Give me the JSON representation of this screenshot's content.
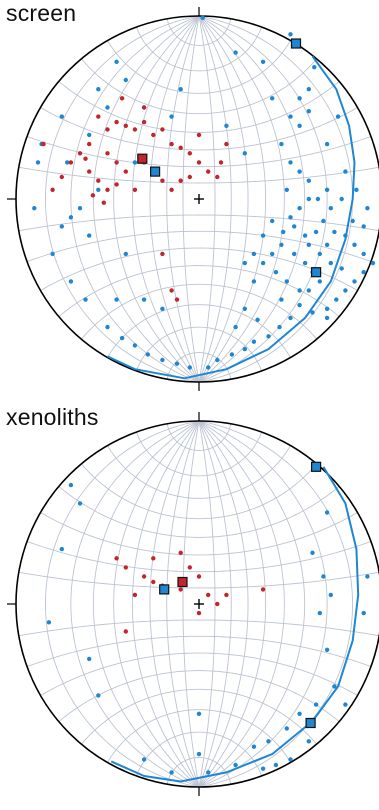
{
  "panels": [
    {
      "id": "screen",
      "title": "screen",
      "colors": {
        "red": "#c0262b",
        "blue": "#1f86d3",
        "grid": "#bcc4d2",
        "great_circle": "#1f86d3"
      },
      "poles_blue": [
        [
          0.02,
          0.99
        ],
        [
          -0.55,
          0.6
        ],
        [
          -0.5,
          0.5
        ],
        [
          -0.6,
          0.35
        ],
        [
          -0.75,
          0.45
        ],
        [
          -0.86,
          0.3
        ],
        [
          -0.88,
          0.2
        ],
        [
          -0.72,
          0.2
        ],
        [
          -0.45,
          0.75
        ],
        [
          -0.4,
          0.65
        ],
        [
          -0.3,
          0.5
        ],
        [
          -0.1,
          0.6
        ],
        [
          0.2,
          0.8
        ],
        [
          0.35,
          0.75
        ],
        [
          0.55,
          0.55
        ],
        [
          0.6,
          0.6
        ],
        [
          0.4,
          0.55
        ],
        [
          0.5,
          0.45
        ],
        [
          0.45,
          0.3
        ],
        [
          0.55,
          0.15
        ],
        [
          0.7,
          0.3
        ],
        [
          0.8,
          0.15
        ],
        [
          0.76,
          0.45
        ],
        [
          0.63,
          0.72
        ],
        [
          0.5,
          0.2
        ],
        [
          0.48,
          0.05
        ],
        [
          0.6,
          0.1
        ],
        [
          0.65,
          0.0
        ],
        [
          0.7,
          0.05
        ],
        [
          0.72,
          -0.05
        ],
        [
          0.68,
          -0.12
        ],
        [
          0.74,
          -0.18
        ],
        [
          0.8,
          -0.2
        ],
        [
          0.85,
          -0.25
        ],
        [
          0.9,
          -0.3
        ],
        [
          0.95,
          -0.35
        ],
        [
          0.9,
          -0.4
        ],
        [
          0.85,
          -0.45
        ],
        [
          0.8,
          -0.5
        ],
        [
          0.75,
          -0.55
        ],
        [
          0.7,
          -0.6
        ],
        [
          0.62,
          -0.62
        ],
        [
          0.55,
          -0.5
        ],
        [
          0.48,
          -0.45
        ],
        [
          0.42,
          -0.4
        ],
        [
          0.4,
          -0.3
        ],
        [
          0.45,
          -0.25
        ],
        [
          0.52,
          -0.3
        ],
        [
          0.58,
          -0.35
        ],
        [
          0.62,
          -0.4
        ],
        [
          0.66,
          -0.45
        ],
        [
          0.6,
          -0.5
        ],
        [
          0.55,
          -0.58
        ],
        [
          0.5,
          -0.65
        ],
        [
          0.44,
          -0.7
        ],
        [
          0.38,
          -0.75
        ],
        [
          0.3,
          -0.78
        ],
        [
          0.25,
          -0.82
        ],
        [
          0.18,
          -0.85
        ],
        [
          0.1,
          -0.88
        ],
        [
          0.05,
          -0.92
        ],
        [
          -0.05,
          -0.92
        ],
        [
          -0.12,
          -0.9
        ],
        [
          -0.2,
          -0.88
        ],
        [
          -0.28,
          -0.85
        ],
        [
          -0.35,
          -0.8
        ],
        [
          -0.42,
          -0.76
        ],
        [
          -0.5,
          -0.7
        ],
        [
          -0.62,
          -0.55
        ],
        [
          -0.7,
          -0.45
        ],
        [
          -0.8,
          -0.3
        ],
        [
          -0.6,
          -0.2
        ],
        [
          -0.4,
          -0.3
        ],
        [
          -0.3,
          -0.55
        ],
        [
          -0.2,
          -0.6
        ],
        [
          -0.45,
          -0.55
        ],
        [
          -0.9,
          -0.05
        ],
        [
          0.35,
          -0.2
        ],
        [
          0.3,
          -0.45
        ],
        [
          0.25,
          -0.6
        ],
        [
          0.2,
          -0.7
        ],
        [
          0.32,
          -0.66
        ],
        [
          0.45,
          -0.55
        ],
        [
          0.6,
          -0.25
        ],
        [
          0.66,
          -0.3
        ],
        [
          0.72,
          -0.35
        ],
        [
          0.78,
          -0.38
        ],
        [
          0.84,
          -0.12
        ],
        [
          0.9,
          -0.15
        ],
        [
          0.92,
          -0.05
        ],
        [
          0.86,
          0.05
        ],
        [
          0.78,
          0.0
        ],
        [
          0.7,
          -0.25
        ],
        [
          0.64,
          -0.18
        ],
        [
          0.58,
          -0.2
        ],
        [
          0.52,
          -0.15
        ],
        [
          0.46,
          -0.18
        ],
        [
          0.4,
          -0.12
        ],
        [
          0.35,
          -0.35
        ],
        [
          0.3,
          -0.3
        ],
        [
          0.25,
          -0.35
        ],
        [
          0.6,
          0.0
        ],
        [
          0.55,
          -0.05
        ],
        [
          0.5,
          -0.1
        ],
        [
          -0.15,
          0.45
        ],
        [
          -0.35,
          0.2
        ],
        [
          -0.55,
          0.05
        ],
        [
          -0.65,
          -0.05
        ],
        [
          -0.7,
          -0.1
        ],
        [
          -0.75,
          -0.15
        ],
        [
          0.15,
          0.4
        ],
        [
          0.25,
          0.25
        ],
        [
          0.55,
          0.4
        ],
        [
          0.6,
          0.48
        ],
        [
          0.7,
          -0.65
        ],
        [
          0.5,
          0.9
        ]
      ],
      "poles_red": [
        [
          -0.55,
          0.45
        ],
        [
          -0.5,
          0.38
        ],
        [
          -0.45,
          0.42
        ],
        [
          -0.4,
          0.4
        ],
        [
          -0.35,
          0.38
        ],
        [
          -0.3,
          0.42
        ],
        [
          -0.25,
          0.35
        ],
        [
          -0.2,
          0.38
        ],
        [
          -0.15,
          0.3
        ],
        [
          -0.1,
          0.28
        ],
        [
          -0.05,
          0.25
        ],
        [
          0.0,
          0.2
        ],
        [
          -0.6,
          0.3
        ],
        [
          -0.65,
          0.25
        ],
        [
          -0.7,
          0.2
        ],
        [
          -0.75,
          0.12
        ],
        [
          -0.5,
          0.25
        ],
        [
          -0.45,
          0.2
        ],
        [
          -0.4,
          0.15
        ],
        [
          -0.3,
          0.2
        ],
        [
          -0.25,
          0.15
        ],
        [
          -0.2,
          0.1
        ],
        [
          -0.15,
          0.05
        ],
        [
          -0.1,
          0.1
        ],
        [
          -0.05,
          0.12
        ],
        [
          0.05,
          0.15
        ],
        [
          0.1,
          0.12
        ],
        [
          0.12,
          0.2
        ],
        [
          -0.55,
          0.1
        ],
        [
          -0.5,
          0.05
        ],
        [
          -0.45,
          0.08
        ],
        [
          -0.35,
          0.05
        ],
        [
          -0.6,
          0.15
        ],
        [
          -0.8,
          0.05
        ],
        [
          -0.85,
          0.3
        ],
        [
          -0.15,
          -0.5
        ],
        [
          -0.12,
          -0.55
        ],
        [
          -0.2,
          -0.3
        ],
        [
          -0.3,
          0.5
        ],
        [
          -0.42,
          0.55
        ],
        [
          0.0,
          0.35
        ],
        [
          0.15,
          0.3
        ],
        [
          -0.58,
          0.02
        ],
        [
          -0.52,
          -0.02
        ],
        [
          -0.62,
          0.22
        ]
      ],
      "great_circle": [
        [
          0.62,
          0.78
        ],
        [
          0.75,
          0.6
        ],
        [
          0.82,
          0.4
        ],
        [
          0.85,
          0.2
        ],
        [
          0.84,
          0.0
        ],
        [
          0.8,
          -0.22
        ],
        [
          0.72,
          -0.45
        ],
        [
          0.58,
          -0.65
        ],
        [
          0.38,
          -0.82
        ],
        [
          0.15,
          -0.93
        ],
        [
          -0.08,
          -0.98
        ],
        [
          -0.35,
          -0.93
        ],
        [
          -0.5,
          -0.86
        ]
      ],
      "squares_blue": [
        [
          0.53,
          0.85
        ],
        [
          -0.24,
          0.15
        ],
        [
          0.64,
          -0.4
        ]
      ],
      "squares_red": [
        [
          -0.31,
          0.22
        ]
      ]
    },
    {
      "id": "xenoliths",
      "title": "xenoliths",
      "colors": {
        "red": "#c0262b",
        "blue": "#1f86d3",
        "grid": "#bcc4d2",
        "great_circle": "#1f86d3"
      },
      "poles_blue": [
        [
          -0.7,
          0.65
        ],
        [
          -0.65,
          0.55
        ],
        [
          -0.75,
          0.3
        ],
        [
          -0.82,
          -0.1
        ],
        [
          -0.6,
          -0.3
        ],
        [
          -0.55,
          -0.5
        ],
        [
          0.7,
          0.5
        ],
        [
          0.62,
          0.28
        ],
        [
          0.68,
          0.15
        ],
        [
          0.72,
          0.05
        ],
        [
          0.66,
          -0.05
        ],
        [
          0.7,
          -0.25
        ],
        [
          0.74,
          -0.45
        ],
        [
          0.64,
          -0.55
        ],
        [
          0.55,
          -0.6
        ],
        [
          0.48,
          -0.68
        ],
        [
          0.38,
          -0.75
        ],
        [
          0.3,
          -0.78
        ],
        [
          0.5,
          -0.85
        ],
        [
          0.42,
          -0.88
        ],
        [
          0.35,
          -0.9
        ],
        [
          0.0,
          -0.6
        ],
        [
          0.0,
          -0.82
        ],
        [
          -0.3,
          -0.85
        ],
        [
          -0.15,
          -0.92
        ],
        [
          0.05,
          -0.92
        ],
        [
          0.2,
          -0.88
        ],
        [
          0.6,
          -0.75
        ],
        [
          0.8,
          -0.55
        ],
        [
          0.9,
          -0.05
        ],
        [
          0.92,
          0.15
        ]
      ],
      "poles_red": [
        [
          -0.3,
          0.15
        ],
        [
          -0.25,
          0.12
        ],
        [
          -0.2,
          0.1
        ],
        [
          -0.1,
          0.08
        ],
        [
          0.0,
          0.15
        ],
        [
          0.05,
          0.05
        ],
        [
          0.1,
          0.0
        ],
        [
          -0.05,
          0.2
        ],
        [
          -0.35,
          0.05
        ],
        [
          -0.45,
          0.25
        ],
        [
          -0.4,
          0.2
        ],
        [
          -0.25,
          0.25
        ],
        [
          0.15,
          0.05
        ],
        [
          0.35,
          0.08
        ],
        [
          -0.4,
          -0.15
        ],
        [
          0.0,
          -0.05
        ],
        [
          -0.1,
          0.28
        ]
      ],
      "great_circle": [
        [
          0.68,
          0.75
        ],
        [
          0.8,
          0.55
        ],
        [
          0.86,
          0.3
        ],
        [
          0.87,
          0.05
        ],
        [
          0.84,
          -0.2
        ],
        [
          0.76,
          -0.45
        ],
        [
          0.62,
          -0.64
        ],
        [
          0.4,
          -0.82
        ],
        [
          0.15,
          -0.92
        ],
        [
          -0.1,
          -0.97
        ],
        [
          -0.3,
          -0.94
        ],
        [
          -0.48,
          -0.86
        ]
      ],
      "squares_blue": [
        [
          0.64,
          0.75
        ],
        [
          -0.19,
          0.08
        ],
        [
          0.61,
          -0.65
        ]
      ],
      "squares_red": [
        [
          -0.09,
          0.12
        ]
      ]
    }
  ]
}
